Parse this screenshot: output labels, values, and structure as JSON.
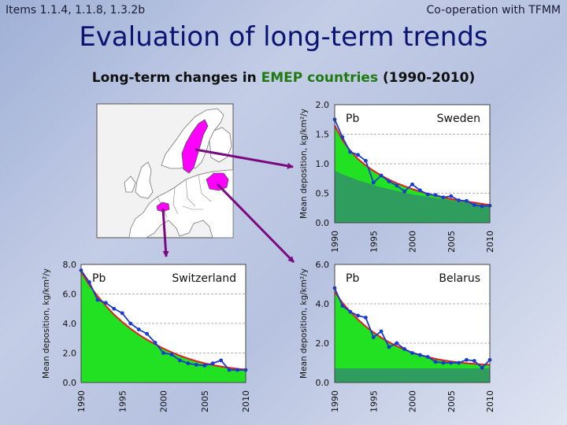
{
  "header": {
    "items_label": "Items 1.1.4, 1.1.8, 1.3.2b",
    "coop_label": "Co-operation with TFMM",
    "title": "Evaluation of long-term trends",
    "subtitle_pre": "Long-term changes in ",
    "subtitle_hl": "EMEP countries",
    "subtitle_post": " (1990-2010)"
  },
  "colors": {
    "land": "#ffffff",
    "sea": "#f2f2f2",
    "highlight": "#ff00ff",
    "arrow": "#7a0a80",
    "bright_fill": "#22e022",
    "dark_fill": "#2e9d5e",
    "trend_line": "#e02020",
    "obs_line": "#1a3ccc"
  },
  "map": {
    "highlighted_countries": [
      "Sweden",
      "Switzerland",
      "Belarus"
    ]
  },
  "chart_data": [
    {
      "id": "sweden",
      "type": "area",
      "element": "Pb",
      "country": "Sweden",
      "ylabel": "Mean deposition, kg/km²/y",
      "ylim": [
        0,
        2.0
      ],
      "yticks": [
        0.0,
        0.5,
        1.0,
        1.5,
        2.0
      ],
      "ytick_labels": [
        "0.0",
        "0.5",
        "1.0",
        "1.5",
        "2.0"
      ],
      "xlim": [
        1990,
        2010
      ],
      "xticks": [
        "1990",
        "1995",
        "2000",
        "2005",
        "2010"
      ],
      "grid": true,
      "x": [
        1990,
        1991,
        1992,
        1993,
        1994,
        1995,
        1996,
        1997,
        1998,
        1999,
        2000,
        2001,
        2002,
        2003,
        2004,
        2005,
        2006,
        2007,
        2008,
        2009,
        2010
      ],
      "observed": [
        1.75,
        1.45,
        1.2,
        1.15,
        1.05,
        0.68,
        0.8,
        0.7,
        0.63,
        0.53,
        0.65,
        0.55,
        0.48,
        0.47,
        0.43,
        0.45,
        0.38,
        0.37,
        0.3,
        0.28,
        0.29
      ],
      "trend": [
        1.65,
        1.4,
        1.22,
        1.08,
        0.97,
        0.88,
        0.8,
        0.73,
        0.67,
        0.62,
        0.57,
        0.53,
        0.49,
        0.46,
        0.43,
        0.4,
        0.38,
        0.36,
        0.34,
        0.32,
        0.3
      ],
      "background": [
        0.88,
        0.82,
        0.77,
        0.72,
        0.68,
        0.64,
        0.6,
        0.57,
        0.54,
        0.51,
        0.48,
        0.46,
        0.44,
        0.42,
        0.4,
        0.38,
        0.36,
        0.34,
        0.32,
        0.3,
        0.29
      ]
    },
    {
      "id": "switzerland",
      "type": "area",
      "element": "Pb",
      "country": "Switzerland",
      "ylabel": "Mean deposition, kg/km²/y",
      "ylim": [
        0,
        8.0
      ],
      "yticks": [
        0.0,
        2.0,
        4.0,
        6.0,
        8.0
      ],
      "ytick_labels": [
        "0.0",
        "2.0",
        "4.0",
        "6.0",
        "8.0"
      ],
      "xlim": [
        1990,
        2010
      ],
      "xticks": [
        "1990",
        "1995",
        "2000",
        "2005",
        "2010"
      ],
      "grid": true,
      "x": [
        1990,
        1991,
        1992,
        1993,
        1994,
        1995,
        1996,
        1997,
        1998,
        1999,
        2000,
        2001,
        2002,
        2003,
        2004,
        2005,
        2006,
        2007,
        2008,
        2009,
        2010
      ],
      "observed": [
        7.6,
        6.8,
        5.6,
        5.4,
        5.0,
        4.7,
        4.0,
        3.6,
        3.3,
        2.7,
        2.0,
        1.9,
        1.5,
        1.3,
        1.2,
        1.15,
        1.3,
        1.5,
        0.85,
        0.85,
        0.85
      ],
      "trend": [
        7.5,
        6.6,
        5.85,
        5.2,
        4.6,
        4.1,
        3.65,
        3.25,
        2.9,
        2.6,
        2.3,
        2.05,
        1.82,
        1.62,
        1.45,
        1.3,
        1.18,
        1.08,
        1.0,
        0.93,
        0.88
      ],
      "background": [
        0,
        0,
        0,
        0,
        0,
        0,
        0,
        0,
        0,
        0,
        0,
        0,
        0,
        0,
        0,
        0,
        0,
        0,
        0,
        0,
        0
      ]
    },
    {
      "id": "belarus",
      "type": "area",
      "element": "Pb",
      "country": "Belarus",
      "ylabel": "Mean deposition, kg/km²/y",
      "ylim": [
        0,
        6.0
      ],
      "yticks": [
        0.0,
        2.0,
        4.0,
        6.0
      ],
      "ytick_labels": [
        "0.0",
        "2.0",
        "4.0",
        "6.0"
      ],
      "xlim": [
        1990,
        2010
      ],
      "xticks": [
        "1990",
        "1995",
        "2000",
        "2005",
        "2010"
      ],
      "grid": true,
      "x": [
        1990,
        1991,
        1992,
        1993,
        1994,
        1995,
        1996,
        1997,
        1998,
        1999,
        2000,
        2001,
        2002,
        2003,
        2004,
        2005,
        2006,
        2007,
        2008,
        2009,
        2010
      ],
      "observed": [
        4.8,
        3.9,
        3.6,
        3.4,
        3.3,
        2.3,
        2.6,
        1.8,
        2.0,
        1.7,
        1.5,
        1.4,
        1.3,
        1.05,
        1.0,
        1.0,
        1.0,
        1.15,
        1.1,
        0.75,
        1.15
      ],
      "trend": [
        4.6,
        4.05,
        3.6,
        3.2,
        2.85,
        2.55,
        2.28,
        2.05,
        1.85,
        1.68,
        1.52,
        1.4,
        1.3,
        1.2,
        1.13,
        1.07,
        1.02,
        0.98,
        0.95,
        0.92,
        0.9
      ],
      "background": [
        0.72,
        0.72,
        0.72,
        0.72,
        0.72,
        0.72,
        0.72,
        0.72,
        0.72,
        0.72,
        0.72,
        0.72,
        0.72,
        0.72,
        0.72,
        0.72,
        0.72,
        0.72,
        0.72,
        0.72,
        0.72
      ]
    }
  ]
}
